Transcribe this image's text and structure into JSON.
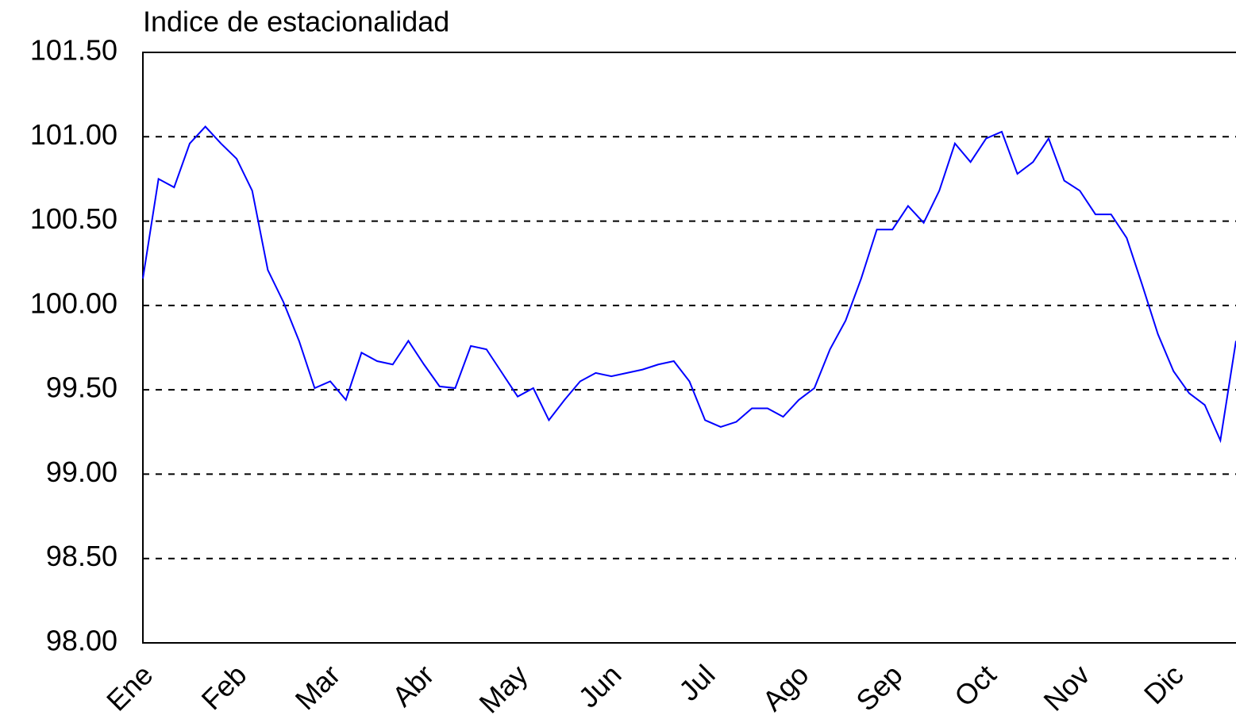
{
  "chart_data": {
    "type": "line",
    "title": "Indice de estacionalidad",
    "categories": [
      "Ene",
      null,
      null,
      null,
      null,
      null,
      "Feb",
      null,
      null,
      null,
      null,
      null,
      "Mar",
      null,
      null,
      null,
      null,
      null,
      "Abr",
      null,
      null,
      null,
      null,
      null,
      "May",
      null,
      null,
      null,
      null,
      null,
      "Jun",
      null,
      null,
      null,
      null,
      null,
      "Jul",
      null,
      null,
      null,
      null,
      null,
      "Ago",
      null,
      null,
      null,
      null,
      null,
      "Sep",
      null,
      null,
      null,
      null,
      null,
      "Oct",
      null,
      null,
      null,
      null,
      null,
      "Nov",
      null,
      null,
      null,
      null,
      null,
      "Dic",
      null,
      null,
      null,
      null
    ],
    "series": [
      {
        "name": "Indice de estacionalidad",
        "color": "#0000ff",
        "values": [
          100.16,
          100.75,
          100.7,
          100.96,
          101.06,
          100.96,
          100.87,
          100.68,
          100.21,
          100.02,
          99.79,
          99.51,
          99.55,
          99.44,
          99.72,
          99.67,
          99.65,
          99.79,
          99.65,
          99.52,
          99.51,
          99.76,
          99.74,
          99.6,
          99.46,
          99.51,
          99.32,
          99.44,
          99.55,
          99.6,
          99.58,
          99.6,
          99.62,
          99.65,
          99.67,
          99.55,
          99.32,
          99.28,
          99.31,
          99.39,
          99.39,
          99.34,
          99.44,
          99.51,
          99.74,
          99.91,
          100.16,
          100.45,
          100.45,
          100.59,
          100.49,
          100.68,
          100.96,
          100.85,
          100.99,
          101.03,
          100.78,
          100.85,
          100.99,
          100.74,
          100.68,
          100.54,
          100.54,
          100.4,
          100.12,
          99.83,
          99.61,
          99.48,
          99.41,
          99.2,
          99.79
        ]
      }
    ],
    "ylim": [
      98,
      101.5
    ],
    "yticks": [
      {
        "value": 98,
        "label": "98.00"
      },
      {
        "value": 98.5,
        "label": "98.50"
      },
      {
        "value": 99,
        "label": "99.00"
      },
      {
        "value": 99.5,
        "label": "99.50"
      },
      {
        "value": 100,
        "label": "100.00"
      },
      {
        "value": 100.5,
        "label": "100.50"
      },
      {
        "value": 101,
        "label": "101.00"
      },
      {
        "value": 101.5,
        "label": "101.50"
      }
    ],
    "grid": true
  }
}
